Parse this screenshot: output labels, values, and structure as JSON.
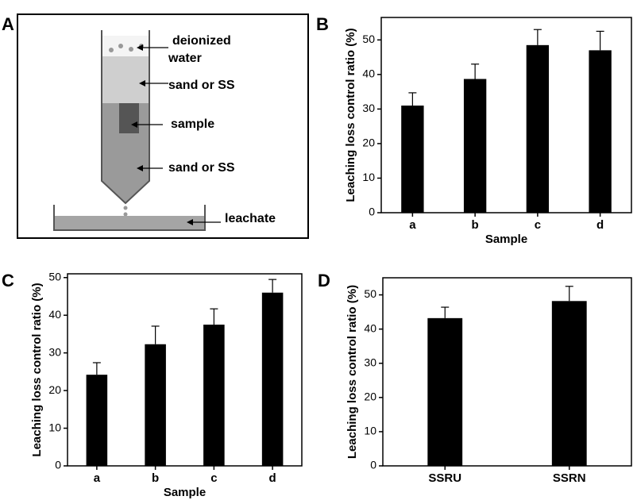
{
  "diagram": {
    "panel_label": "A",
    "labels": [
      {
        "lines": [
          "deionized",
          "water"
        ]
      },
      {
        "lines": [
          "sand or SS"
        ]
      },
      {
        "lines": [
          "sample"
        ]
      },
      {
        "lines": [
          "sand or SS"
        ]
      },
      {
        "lines": [
          "leachate"
        ]
      }
    ]
  },
  "chart_data": [
    {
      "type": "bar",
      "panel_label": "B",
      "y_label": "Leaching loss control ratio (%)",
      "x_label": "Sample",
      "categories": [
        "a",
        "b",
        "c",
        "d"
      ],
      "values": [
        31,
        38.7,
        48.5,
        47
      ],
      "errors": [
        3.7,
        4.3,
        4.5,
        5.5
      ],
      "color": "#000000",
      "ylim": [
        0,
        56.5
      ],
      "yticks": [
        0,
        10,
        20,
        30,
        40,
        50
      ]
    },
    {
      "type": "bar",
      "panel_label": "C",
      "y_label": "Leaching loss control ratio (%)",
      "x_label": "Sample",
      "categories": [
        "a",
        "b",
        "c",
        "d"
      ],
      "values": [
        24.2,
        32.3,
        37.5,
        46
      ],
      "errors": [
        3.2,
        4.8,
        4.2,
        3.5
      ],
      "color": "#000000",
      "ylim": [
        0,
        51
      ],
      "yticks": [
        0,
        10,
        20,
        30,
        40,
        50
      ]
    },
    {
      "type": "bar",
      "panel_label": "D",
      "y_label": "Leaching loss control ratio (%)",
      "categories": [
        "SSRU",
        "SSRN"
      ],
      "values": [
        43.2,
        48.2
      ],
      "errors": [
        3.2,
        4.3
      ],
      "color": "#000000",
      "ylim": [
        0,
        55
      ],
      "yticks": [
        0,
        10,
        20,
        30,
        40,
        50
      ]
    }
  ]
}
